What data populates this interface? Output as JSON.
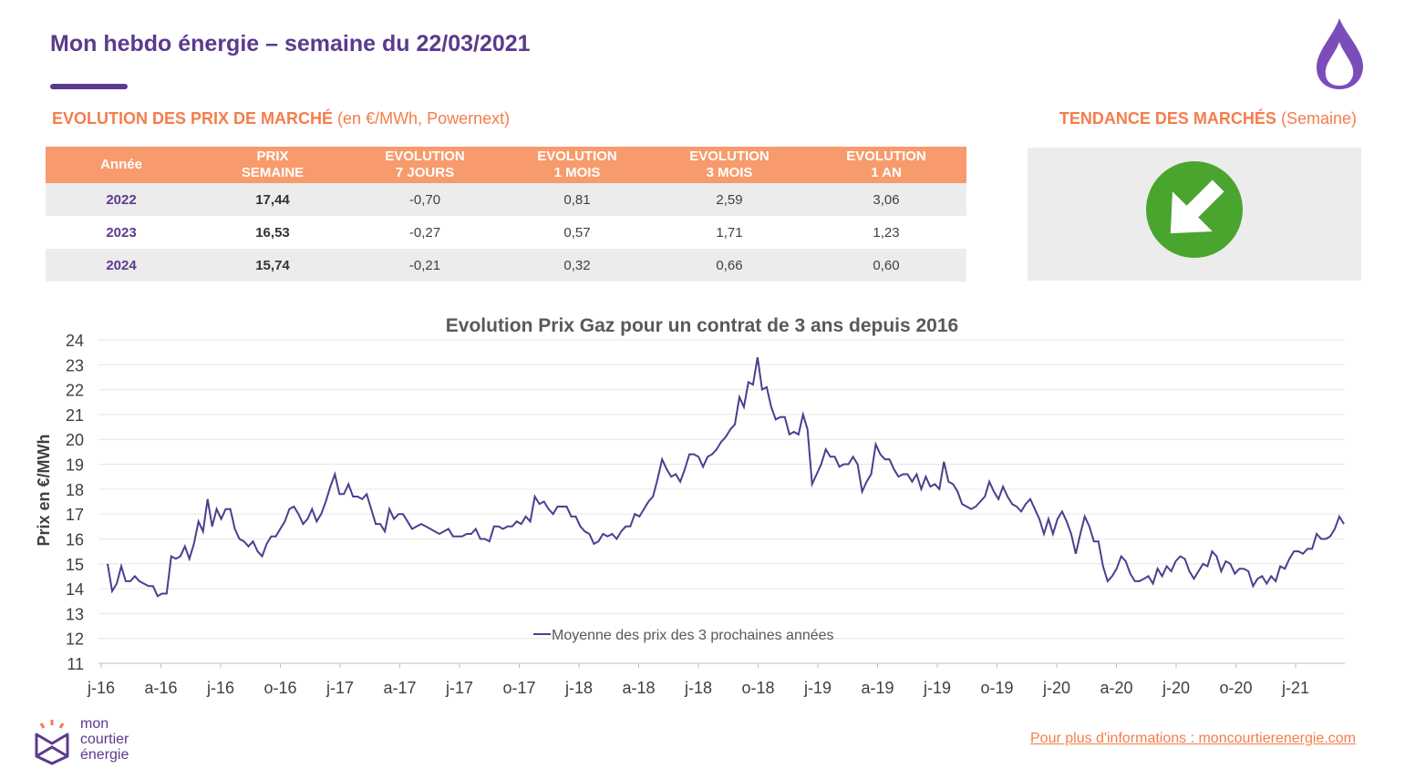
{
  "header": {
    "title": "Mon hebdo énergie – semaine du 22/03/2021"
  },
  "market_section": {
    "title_bold": "EVOLUTION DES PRIX DE MARCHÉ",
    "title_light": "(en €/MWh, Powernext)"
  },
  "trend_section": {
    "title_bold": "TENDANCE DES MARCHÉS",
    "title_light": "(Semaine)",
    "trend_icon": "down-right-arrow-icon",
    "trend_color": "#4aa52e"
  },
  "price_table": {
    "headers": [
      [
        "Année",
        ""
      ],
      [
        "PRIX",
        "SEMAINE"
      ],
      [
        "EVOLUTION",
        "7 JOURS"
      ],
      [
        "EVOLUTION",
        "1 MOIS"
      ],
      [
        "EVOLUTION",
        "3 MOIS"
      ],
      [
        "EVOLUTION",
        "1 AN"
      ]
    ],
    "rows": [
      [
        "2022",
        "17,44",
        "-0,70",
        "0,81",
        "2,59",
        "3,06"
      ],
      [
        "2023",
        "16,53",
        "-0,27",
        "0,57",
        "1,71",
        "1,23"
      ],
      [
        "2024",
        "15,74",
        "-0,21",
        "0,32",
        "0,66",
        "0,60"
      ]
    ]
  },
  "chart_data": {
    "type": "line",
    "title": "Evolution Prix Gaz pour un contrat de 3 ans depuis 2016",
    "ylabel": "Prix en €/MWh",
    "xlabel": "",
    "ylim": [
      11,
      24
    ],
    "yticks": [
      "24",
      "23",
      "22",
      "21",
      "20",
      "19",
      "18",
      "17",
      "16",
      "15",
      "14",
      "13",
      "12",
      "11"
    ],
    "xticks": [
      "j-16",
      "a-16",
      "j-16",
      "o-16",
      "j-17",
      "a-17",
      "j-17",
      "o-17",
      "j-18",
      "a-18",
      "j-18",
      "o-18",
      "j-19",
      "a-19",
      "j-19",
      "o-19",
      "j-20",
      "a-20",
      "j-20",
      "o-20",
      "j-21"
    ],
    "grid": true,
    "legend_position": "bottom-center",
    "line_color": "#4b3f8f",
    "series": [
      {
        "name": "Moyenne des prix des 3 prochaines années",
        "values": [
          15.0,
          13.9,
          14.2,
          14.9,
          14.3,
          14.3,
          14.5,
          14.3,
          14.2,
          14.1,
          14.1,
          13.7,
          13.8,
          13.8,
          15.3,
          15.2,
          15.3,
          15.7,
          15.2,
          15.8,
          16.7,
          16.3,
          17.6,
          16.5,
          17.2,
          16.8,
          17.2,
          17.2,
          16.4,
          16.0,
          15.9,
          15.7,
          15.9,
          15.5,
          15.3,
          15.8,
          16.1,
          16.1,
          16.4,
          16.7,
          17.2,
          17.3,
          17.0,
          16.6,
          16.8,
          17.2,
          16.7,
          17.0,
          17.5,
          18.1,
          18.6,
          17.8,
          17.8,
          18.2,
          17.7,
          17.7,
          17.6,
          17.8,
          17.2,
          16.6,
          16.6,
          16.3,
          17.2,
          16.8,
          17.0,
          17.0,
          16.7,
          16.4,
          16.5,
          16.6,
          16.5,
          16.4,
          16.3,
          16.2,
          16.3,
          16.4,
          16.1,
          16.1,
          16.1,
          16.2,
          16.2,
          16.4,
          16.0,
          16.0,
          15.9,
          16.5,
          16.5,
          16.4,
          16.5,
          16.5,
          16.7,
          16.6,
          16.9,
          16.7,
          17.7,
          17.4,
          17.5,
          17.2,
          17.0,
          17.3,
          17.3,
          17.3,
          16.9,
          16.9,
          16.5,
          16.3,
          16.2,
          15.8,
          15.9,
          16.2,
          16.1,
          16.2,
          16.0,
          16.3,
          16.5,
          16.5,
          17.0,
          16.9,
          17.2,
          17.5,
          17.7,
          18.4,
          19.2,
          18.8,
          18.5,
          18.6,
          18.3,
          18.8,
          19.4,
          19.4,
          19.3,
          18.9,
          19.3,
          19.4,
          19.6,
          19.9,
          20.1,
          20.4,
          20.6,
          21.7,
          21.3,
          22.3,
          22.2,
          23.3,
          22.0,
          22.1,
          21.3,
          20.8,
          20.9,
          20.9,
          20.2,
          20.3,
          20.2,
          21.0,
          20.4,
          18.2,
          18.6,
          19.0,
          19.6,
          19.3,
          19.3,
          18.9,
          19.0,
          19.0,
          19.3,
          19.0,
          17.9,
          18.3,
          18.6,
          19.8,
          19.4,
          19.2,
          19.2,
          18.8,
          18.5,
          18.6,
          18.6,
          18.3,
          18.6,
          18.0,
          18.5,
          18.1,
          18.2,
          18.0,
          19.1,
          18.3,
          18.2,
          17.9,
          17.4,
          17.3,
          17.2,
          17.3,
          17.5,
          17.7,
          18.3,
          17.9,
          17.6,
          18.1,
          17.7,
          17.4,
          17.3,
          17.1,
          17.4,
          17.6,
          17.2,
          16.8,
          16.2,
          16.8,
          16.2,
          16.8,
          17.1,
          16.7,
          16.2,
          15.4,
          16.2,
          16.9,
          16.5,
          15.9,
          15.9,
          14.9,
          14.3,
          14.5,
          14.8,
          15.3,
          15.1,
          14.6,
          14.3,
          14.3,
          14.4,
          14.5,
          14.2,
          14.8,
          14.5,
          14.9,
          14.7,
          15.1,
          15.3,
          15.2,
          14.7,
          14.4,
          14.7,
          15.0,
          14.9,
          15.5,
          15.3,
          14.7,
          15.1,
          15.0,
          14.6,
          14.8,
          14.8,
          14.7,
          14.1,
          14.4,
          14.5,
          14.2,
          14.5,
          14.3,
          14.9,
          14.8,
          15.2,
          15.5,
          15.5,
          15.4,
          15.6,
          15.6,
          16.2,
          16.0,
          16.0,
          16.1,
          16.4,
          16.9,
          16.6
        ]
      }
    ]
  },
  "footer": {
    "logo_line1": "mon",
    "logo_line2": "courtier",
    "logo_line3": "énergie",
    "link_text": "Pour plus d'informations : moncourtierenergie.com"
  },
  "colors": {
    "brand_purple": "#5b3a8e",
    "accent_orange": "#f47d4b",
    "table_header": "#f89b6c"
  }
}
